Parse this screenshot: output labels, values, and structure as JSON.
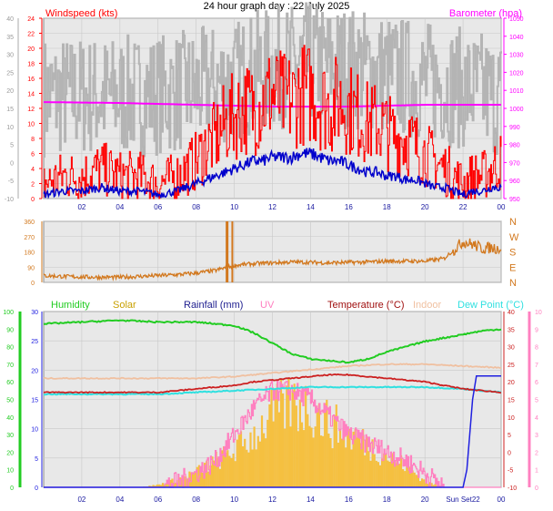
{
  "page_title": "24 hour graph day : 22 July 2025",
  "colors": {
    "plot_bg": "#e8e8e8",
    "grid": "#c8c8c8",
    "wind_speed": "#ff0000",
    "wind_avg": "#0000cc",
    "barometer": "#ff00ff",
    "baro_hist": "#b4b4b4",
    "wind_dir": "#d2781e",
    "humidity": "#22cc22",
    "solar": "#f5c040",
    "solar_text": "#c8a000",
    "rainfall": "#2020e0",
    "uv": "#ff80c0",
    "temperature": "#cc2020",
    "indoor": "#f0c0a0",
    "dewpoint": "#30e0e0"
  },
  "chart_data": [
    {
      "id": "wind_baro",
      "type": "line",
      "title": "24 hour graph day : 22 July 2025",
      "x_ticks": [
        "02",
        "04",
        "06",
        "08",
        "10",
        "12",
        "14",
        "16",
        "18",
        "20",
        "22",
        "00"
      ],
      "left_far_axis": {
        "ticks": [
          -10,
          -5,
          0,
          5,
          10,
          15,
          20,
          25,
          30,
          35,
          40
        ]
      },
      "left_axis": {
        "label": "Windspeed (kts)",
        "ylim": [
          0,
          24
        ],
        "ticks": [
          0,
          2,
          4,
          6,
          8,
          10,
          12,
          14,
          16,
          18,
          20,
          22,
          24
        ]
      },
      "right_axis": {
        "label": "Barometer (hpa)",
        "ylim": [
          950,
          1050
        ],
        "ticks": [
          950,
          960,
          970,
          980,
          990,
          1000,
          1010,
          1020,
          1030,
          1040,
          1050
        ]
      },
      "series": [
        {
          "name": "Windspeed (kts)",
          "axis": "left",
          "color": "#ff0000",
          "x": [
            0,
            1,
            2,
            3,
            4,
            5,
            6,
            7,
            7.5,
            8,
            8.5,
            9,
            9.5,
            10,
            10.5,
            11,
            11.5,
            12,
            12.5,
            13,
            13.5,
            14,
            14.5,
            15,
            15.5,
            16,
            16.5,
            17,
            17.5,
            18,
            18.5,
            19,
            19.5,
            20,
            20.5,
            21,
            21.5,
            22,
            22.5,
            23,
            23.5,
            24
          ],
          "values": [
            2,
            3,
            3,
            4,
            3,
            3,
            2,
            3,
            4,
            5,
            7,
            8,
            10,
            11,
            12,
            12,
            13,
            14,
            13,
            13,
            14,
            14,
            13,
            12,
            13,
            12,
            11,
            10,
            10,
            9,
            8,
            8,
            7,
            6,
            5,
            4,
            3,
            2,
            3,
            3,
            4,
            5
          ]
        },
        {
          "name": "Average wind",
          "axis": "left",
          "color": "#0000cc",
          "x": [
            0,
            1,
            2,
            3,
            4,
            5,
            6,
            7,
            7.5,
            8,
            8.5,
            9,
            9.5,
            10,
            10.5,
            11,
            11.5,
            12,
            12.5,
            13,
            13.5,
            14,
            14.5,
            15,
            15.5,
            16,
            16.5,
            17,
            17.5,
            18,
            18.5,
            19,
            19.5,
            20,
            20.5,
            21,
            21.5,
            22,
            22.5,
            23,
            23.5,
            24
          ],
          "values": [
            0.5,
            1,
            1,
            1.5,
            1,
            1,
            0.5,
            1,
            1.5,
            2,
            2.5,
            3,
            3.5,
            4,
            4.5,
            5,
            5,
            5.5,
            5.5,
            5.5,
            6,
            6,
            5.5,
            5,
            5,
            4.5,
            4,
            3.5,
            3.5,
            3,
            3,
            2.5,
            2.5,
            2,
            1.5,
            1.5,
            1,
            0.5,
            1,
            1,
            1.5,
            1.5
          ]
        },
        {
          "name": "Barometer (hpa)",
          "axis": "right",
          "color": "#ff00ff",
          "x": [
            0,
            4,
            8,
            12,
            16,
            20,
            24
          ],
          "values": [
            1003.5,
            1003,
            1002,
            1001,
            1001,
            1002,
            1002
          ]
        },
        {
          "name": "Barometer history",
          "axis": "right",
          "color": "#b4b4b4",
          "x": [
            0,
            5,
            6,
            7,
            8,
            9,
            10,
            10.5,
            11,
            12,
            13,
            14,
            15,
            16,
            17,
            18,
            19,
            20,
            21,
            22,
            23,
            23.5,
            24
          ],
          "values": [
            1007,
            1007,
            1008,
            1009,
            1011,
            1013,
            1015,
            1018,
            1020,
            1022,
            1024,
            1025,
            1024,
            1023,
            1021,
            1019,
            1017,
            1015,
            1013,
            1011,
            1009,
            1007,
            1007
          ]
        }
      ]
    },
    {
      "id": "wind_dir",
      "type": "scatter",
      "x_ticks": [
        "02",
        "04",
        "06",
        "08",
        "10",
        "12",
        "14",
        "16",
        "18",
        "20",
        "22",
        "00"
      ],
      "left_axis": {
        "ylim": [
          0,
          360
        ],
        "ticks": [
          0,
          90,
          180,
          270,
          360
        ]
      },
      "right_axis": {
        "tick_labels": [
          "N",
          "E",
          "S",
          "W",
          "N"
        ]
      },
      "series": [
        {
          "name": "Wind direction",
          "color": "#d2781e",
          "x": [
            0,
            1,
            2,
            3,
            4,
            5,
            6,
            7,
            8,
            9,
            9.5,
            10,
            11,
            12,
            13,
            14,
            15,
            16,
            17,
            18,
            19,
            20,
            21,
            22,
            22.5,
            23,
            23.5,
            24
          ],
          "values": [
            40,
            35,
            32,
            30,
            30,
            35,
            40,
            45,
            55,
            70,
            85,
            100,
            110,
            115,
            120,
            118,
            115,
            118,
            120,
            125,
            125,
            125,
            140,
            240,
            225,
            200,
            205,
            200
          ]
        }
      ]
    },
    {
      "id": "environment",
      "type": "line",
      "x_ticks": [
        "02",
        "04",
        "06",
        "08",
        "10",
        "12",
        "14",
        "16",
        "18",
        "20",
        "Sun Set22",
        "00"
      ],
      "annotations": [
        "Sun Set"
      ],
      "humidity_axis": {
        "ylim": [
          0,
          100
        ],
        "ticks": [
          0,
          10,
          20,
          30,
          40,
          50,
          60,
          70,
          80,
          90,
          100
        ]
      },
      "solar_axis": {
        "ticks": [
          0,
          5,
          10,
          15,
          20,
          25,
          30
        ]
      },
      "temp_axis": {
        "ylim": [
          -10,
          40
        ],
        "ticks": [
          -10,
          -5,
          0,
          5,
          10,
          15,
          20,
          25,
          30,
          35,
          40
        ]
      },
      "uv_axis": {
        "ylim": [
          0,
          10
        ],
        "ticks": [
          0,
          1,
          2,
          3,
          4,
          5,
          6,
          7,
          8,
          9,
          10
        ]
      },
      "legend": [
        "Humidity",
        "Solar",
        "Rainfall (mm)",
        "UV",
        "Temperature (°C)",
        "Indoor",
        "Dew Point (°C)"
      ],
      "series": [
        {
          "name": "Humidity",
          "color": "#22cc22",
          "x": [
            0,
            2,
            4,
            6,
            8,
            10,
            11,
            12,
            13,
            14,
            15,
            16,
            17,
            18,
            19,
            20,
            21,
            22,
            22.5,
            23,
            24
          ],
          "values": [
            93,
            94,
            95,
            94,
            94,
            92,
            88,
            82,
            76,
            73,
            72,
            71,
            73,
            77,
            80,
            83,
            85,
            87,
            88,
            89,
            90
          ]
        },
        {
          "name": "Temperature (°C)",
          "color": "#cc2020",
          "x": [
            0,
            2,
            4,
            6,
            8,
            10,
            11,
            12,
            13,
            14,
            15,
            16,
            17,
            18,
            19,
            20,
            21,
            22,
            23,
            24
          ],
          "values": [
            17,
            17,
            17,
            17,
            18,
            19,
            20,
            20.5,
            21,
            21.5,
            22,
            22,
            21.5,
            21,
            20.5,
            20,
            19,
            18,
            17.5,
            17
          ]
        },
        {
          "name": "Indoor",
          "color": "#f0c0a0",
          "x": [
            0,
            2,
            4,
            6,
            8,
            10,
            12,
            14,
            16,
            18,
            20,
            22,
            24
          ],
          "values": [
            21,
            21,
            21,
            21,
            21,
            21.5,
            22.5,
            23.5,
            24.5,
            25,
            25,
            24.5,
            24
          ]
        },
        {
          "name": "Dew Point (°C)",
          "color": "#30e0e0",
          "x": [
            0,
            2,
            4,
            6,
            8,
            10,
            12,
            14,
            16,
            18,
            20,
            22,
            24
          ],
          "values": [
            16.5,
            16.5,
            16.5,
            16.5,
            17,
            17.5,
            18,
            18.5,
            18.5,
            18.5,
            18.5,
            18,
            17
          ]
        },
        {
          "name": "Rainfall (mm)",
          "color": "#2020e0",
          "x": [
            0,
            21,
            22,
            22.2,
            22.5,
            22.7,
            23,
            24
          ],
          "values": [
            0,
            0,
            0,
            3,
            15,
            19,
            19,
            19
          ]
        },
        {
          "name": "UV",
          "color": "#ff80c0",
          "x": [
            0,
            6,
            7,
            8,
            9,
            10,
            11,
            12,
            13,
            14,
            15,
            16,
            17,
            18,
            19,
            20,
            21,
            24
          ],
          "values": [
            0,
            0,
            0.3,
            0.8,
            1.5,
            3,
            4.5,
            5.5,
            5.5,
            5,
            4,
            3,
            2.5,
            2,
            1.5,
            0.8,
            0,
            0
          ]
        },
        {
          "name": "Solar",
          "color": "#f5c040",
          "x": [
            0,
            5,
            6,
            7,
            8,
            9,
            10,
            11,
            12,
            13,
            14,
            15,
            16,
            17,
            18,
            19,
            20,
            21,
            24
          ],
          "values": [
            0,
            0,
            0.5,
            1.5,
            3,
            5,
            7,
            10,
            14,
            16,
            15,
            12,
            10,
            8,
            6,
            4,
            1,
            0,
            0
          ]
        }
      ]
    }
  ]
}
